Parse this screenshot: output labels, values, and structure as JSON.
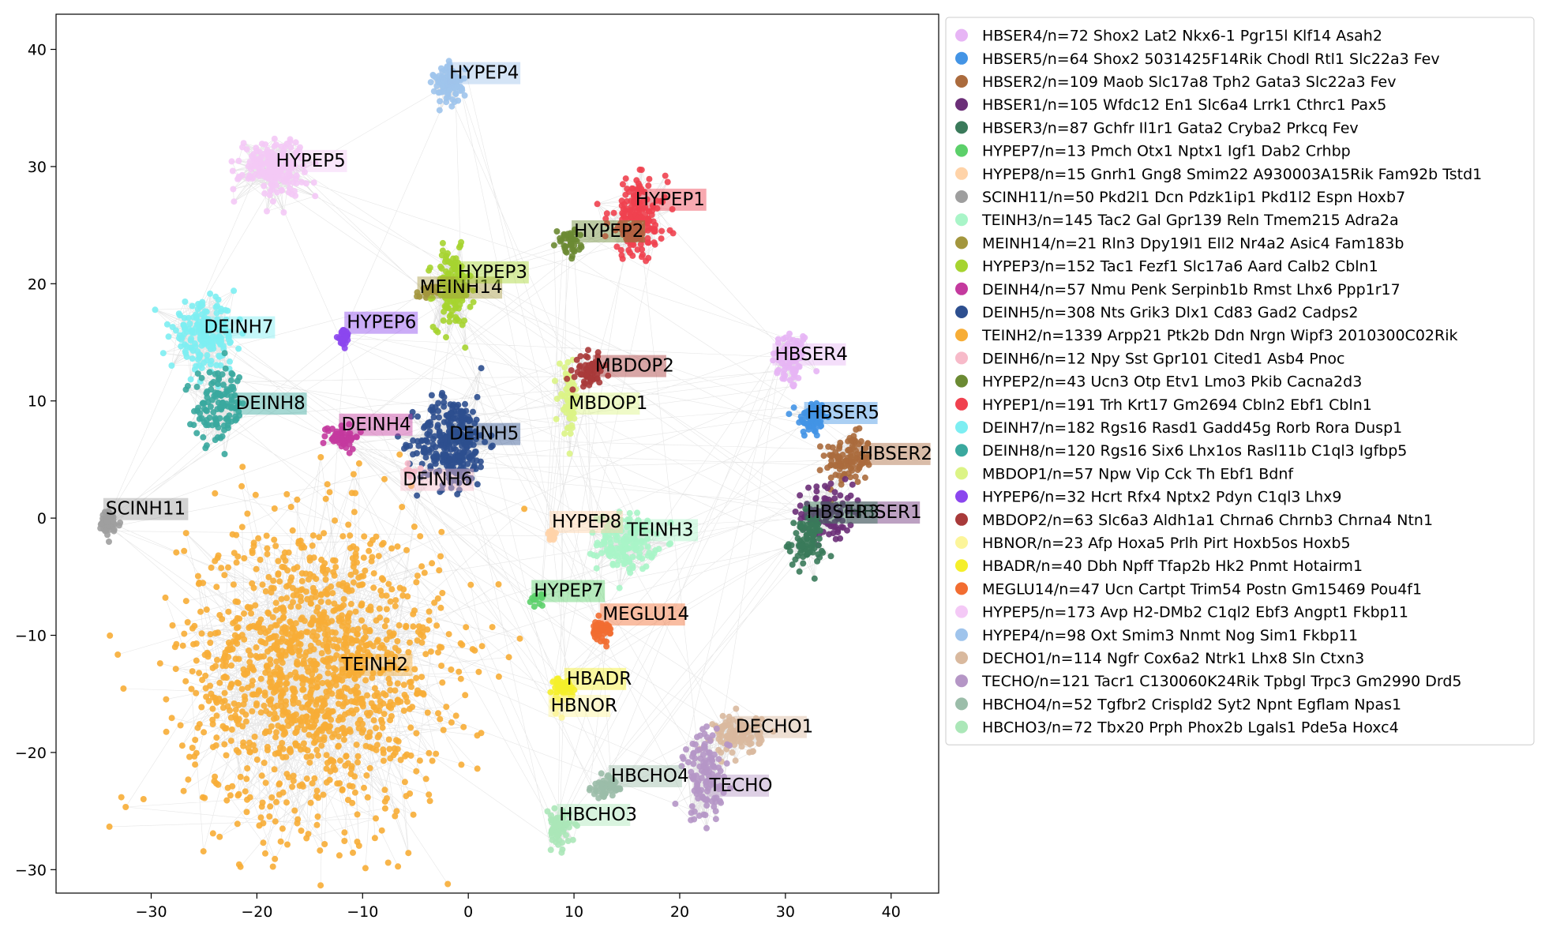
{
  "chart_data": {
    "type": "scatter",
    "xlabel": "",
    "ylabel": "",
    "xlim": [
      -39,
      44.5
    ],
    "ylim": [
      -32,
      43
    ],
    "xticks": [
      -30,
      -20,
      -10,
      0,
      10,
      20,
      30,
      40
    ],
    "yticks": [
      -30,
      -20,
      -10,
      0,
      10,
      20,
      30,
      40
    ],
    "grid": false,
    "legend_position": "right outside",
    "series": [
      {
        "name": "HBSER4/n=72 Shox2 Lat2 Nkx6-1 Pgr15l Klf14 Asah2",
        "label": "HBSER4",
        "color": "#e7b5f5",
        "n": 72,
        "center": [
          30.5,
          13.5
        ],
        "spread": [
          1.6,
          2.4
        ],
        "label_pos": [
          29.0,
          13.5
        ]
      },
      {
        "name": "HBSER5/n=64 Shox2 5031425F14Rik Chodl Rtl1 Slc22a3 Fev",
        "label": "HBSER5",
        "color": "#4394e5",
        "n": 64,
        "center": [
          32.5,
          8.5
        ],
        "spread": [
          1.2,
          1.5
        ],
        "label_pos": [
          32.0,
          8.5
        ]
      },
      {
        "name": "HBSER2/n=109 Maob Slc17a8 Tph2 Gata3 Slc22a3 Fev",
        "label": "HBSER2",
        "color": "#ab6b3d",
        "n": 109,
        "center": [
          36.0,
          5.0
        ],
        "spread": [
          2.0,
          2.0
        ],
        "label_pos": [
          37.0,
          5.0
        ]
      },
      {
        "name": "HBSER1/n=105 Wfdc12 En1 Slc6a4 Lrrk1 Cthrc1 Pax5",
        "label": "HBSER1",
        "color": "#6b2f78",
        "n": 105,
        "center": [
          34.0,
          0.5
        ],
        "spread": [
          2.2,
          2.2
        ],
        "label_pos": [
          36.0,
          0.0
        ]
      },
      {
        "name": "HBSER3/n=87 Gchfr Il1r1 Gata2 Cryba2 Prkcq Fev",
        "label": "HBSER3",
        "color": "#3a7a5a",
        "n": 87,
        "center": [
          32.0,
          -2.0
        ],
        "spread": [
          1.5,
          2.0
        ],
        "label_pos": [
          32.0,
          0.0
        ]
      },
      {
        "name": "HYPEP7/n=13 Pmch Otx1 Nptx1 Igf1 Dab2 Crhbp",
        "label": "HYPEP7",
        "color": "#5cd06a",
        "n": 13,
        "center": [
          6.5,
          -7.0
        ],
        "spread": [
          0.5,
          0.4
        ],
        "label_pos": [
          6.2,
          -6.7
        ]
      },
      {
        "name": "HYPEP8/n=15 Gnrh1 Gng8 Smim22 A930003A15Rik Fam92b Tstd1",
        "label": "HYPEP8",
        "color": "#ffd3a8",
        "n": 15,
        "center": [
          8.0,
          -1.5
        ],
        "spread": [
          0.5,
          0.4
        ],
        "label_pos": [
          7.9,
          -0.8
        ]
      },
      {
        "name": "SCINH11/n=50 Pkd2l1 Dcn Pdzk1ip1 Pkd1l2 Espn Hoxb7",
        "label": "SCINH11",
        "color": "#9e9e9e",
        "n": 50,
        "center": [
          -34.0,
          -0.5
        ],
        "spread": [
          1.0,
          1.0
        ],
        "label_pos": [
          -34.3,
          0.3
        ]
      },
      {
        "name": "TEINH3/n=145 Tac2 Gal Gpr139 Reln Tmem215 Adra2a",
        "label": "TEINH3",
        "color": "#a9f5c8",
        "n": 145,
        "center": [
          15.0,
          -2.0
        ],
        "spread": [
          2.5,
          2.2
        ],
        "label_pos": [
          15.0,
          -1.5
        ]
      },
      {
        "name": "MEINH14/n=21 Rln3 Dpy19l1 Ell2 Nr4a2 Asic4 Fam183b",
        "label": "MEINH14",
        "color": "#a3963d",
        "n": 21,
        "center": [
          -4.0,
          19.2
        ],
        "spread": [
          0.8,
          0.6
        ],
        "label_pos": [
          -4.6,
          19.2
        ]
      },
      {
        "name": "HYPEP3/n=152 Tac1 Fezf1 Slc17a6 Aard Calb2 Cbln1",
        "label": "HYPEP3",
        "color": "#a6d430",
        "n": 152,
        "center": [
          -1.5,
          19.5
        ],
        "spread": [
          1.6,
          3.0
        ],
        "label_pos": [
          -1.0,
          20.5
        ]
      },
      {
        "name": "DEINH4/n=57 Nmu Penk Serpinb1b Rmst Lhx6 Ppp1r17",
        "label": "DEINH4",
        "color": "#c43a9e",
        "n": 57,
        "center": [
          -12.0,
          7.0
        ],
        "spread": [
          1.5,
          1.0
        ],
        "label_pos": [
          -12.0,
          7.5
        ]
      },
      {
        "name": "DEINH5/n=308 Nts Grik3 Dlx1 Cd83 Gad2 Cadps2",
        "label": "DEINH5",
        "color": "#2d4f8f",
        "n": 308,
        "center": [
          -1.5,
          6.5
        ],
        "spread": [
          3.0,
          3.5
        ],
        "label_pos": [
          -1.8,
          6.7
        ]
      },
      {
        "name": "TEINH2/n=1339 Arpp21 Ptk2b Ddn Nrgn Wipf3 2010300C02Rik",
        "label": "TEINH2",
        "color": "#f7ad36",
        "n": 1339,
        "center": [
          -14.5,
          -13.0
        ],
        "spread": [
          11.0,
          11.5
        ],
        "label_pos": [
          -12.0,
          -13.0
        ]
      },
      {
        "name": "DEINH6/n=12 Npy Sst Gpr101 Cited1 Asb4 Pnoc",
        "label": "DEINH6",
        "color": "#f7bac9",
        "n": 12,
        "center": [
          -5.5,
          4.0
        ],
        "spread": [
          0.8,
          0.6
        ],
        "label_pos": [
          -6.2,
          2.8
        ]
      },
      {
        "name": "HYPEP2/n=43 Ucn3 Otp Etv1 Lmo3 Pkib Cacna2d3",
        "label": "HYPEP2",
        "color": "#6b8a33",
        "n": 43,
        "center": [
          9.5,
          23.5
        ],
        "spread": [
          1.0,
          1.0
        ],
        "label_pos": [
          10.0,
          24.0
        ]
      },
      {
        "name": "HYPEP1/n=191 Trh Krt17 Gm2694 Cbln2 Ebf1 Cbln1",
        "label": "HYPEP1",
        "color": "#f0414f",
        "n": 191,
        "center": [
          16.0,
          25.5
        ],
        "spread": [
          2.5,
          3.0
        ],
        "label_pos": [
          15.8,
          26.7
        ]
      },
      {
        "name": "DEINH7/n=182 Rgs16 Rasd1 Gadd45g Rorb Rora Dusp1",
        "label": "DEINH7",
        "color": "#7deef2",
        "n": 182,
        "center": [
          -25.0,
          15.5
        ],
        "spread": [
          2.8,
          2.5
        ],
        "label_pos": [
          -25.0,
          15.8
        ]
      },
      {
        "name": "DEINH8/n=120 Rgs16 Six6 Lhx1os Rasl11b C1ql3 Igfbp5",
        "label": "DEINH8",
        "color": "#3aa89e",
        "n": 120,
        "center": [
          -23.5,
          9.5
        ],
        "spread": [
          2.2,
          2.8
        ],
        "label_pos": [
          -22.0,
          9.3
        ]
      },
      {
        "name": "MBDOP1/n=57 Npw Vip Cck Th Ebf1 Bdnf",
        "label": "MBDOP1",
        "color": "#dcf486",
        "n": 57,
        "center": [
          9.5,
          10.0
        ],
        "spread": [
          0.8,
          2.5
        ],
        "label_pos": [
          9.5,
          9.3
        ]
      },
      {
        "name": "HYPEP6/n=32 Hcrt Rfx4 Nptx2 Pdyn C1ql3 Lhx9",
        "label": "HYPEP6",
        "color": "#8b46ee",
        "n": 32,
        "center": [
          -11.8,
          15.5
        ],
        "spread": [
          0.5,
          0.7
        ],
        "label_pos": [
          -11.5,
          16.2
        ]
      },
      {
        "name": "MBDOP2/n=63 Slc6a3 Aldh1a1 Chrna6 Chrnb3 Chrna4 Ntn1",
        "label": "MBDOP2",
        "color": "#a83a3a",
        "n": 63,
        "center": [
          11.5,
          12.5
        ],
        "spread": [
          1.2,
          1.2
        ],
        "label_pos": [
          12.0,
          12.5
        ]
      },
      {
        "name": "HBNOR/n=23 Afp Hoxa5 Prlh Pirt Hoxb5os Hoxb5",
        "label": "HBNOR",
        "color": "#fcf59a",
        "n": 23,
        "center": [
          8.5,
          -15.5
        ],
        "spread": [
          0.8,
          1.0
        ],
        "label_pos": [
          7.8,
          -16.5
        ]
      },
      {
        "name": "HBADR/n=40 Dbh Npff Tfap2b Hk2 Pnmt Hotairm1",
        "label": "HBADR",
        "color": "#f5ef2a",
        "n": 40,
        "center": [
          9.0,
          -14.5
        ],
        "spread": [
          0.8,
          0.8
        ],
        "label_pos": [
          9.3,
          -14.2
        ]
      },
      {
        "name": "MEGLU14/n=47 Ucn Cartpt Trim54 Postn Gm15469 Pou4f1",
        "label": "MEGLU14",
        "color": "#f26d31",
        "n": 47,
        "center": [
          12.5,
          -9.5
        ],
        "spread": [
          1.0,
          0.8
        ],
        "label_pos": [
          12.7,
          -8.7
        ]
      },
      {
        "name": "HYPEP5/n=173 Avp H2-DMb2 C1ql2 Ebf3 Angpt1 Fkbp11",
        "label": "HYPEP5",
        "color": "#f4c9f6",
        "n": 173,
        "center": [
          -18.5,
          30.0
        ],
        "spread": [
          2.8,
          2.2
        ],
        "label_pos": [
          -18.2,
          30.0
        ]
      },
      {
        "name": "HYPEP4/n=98 Oxt Smim3 Nnmt Nog Sim1 Fkbp11",
        "label": "HYPEP4",
        "color": "#9fc4ec",
        "n": 98,
        "center": [
          -1.8,
          37.0
        ],
        "spread": [
          1.3,
          1.5
        ],
        "label_pos": [
          -1.8,
          37.5
        ]
      },
      {
        "name": "DECHO1/n=114 Ngfr Cox6a2 Ntrk1 Lhx8 Sln Ctxn3",
        "label": "DECHO1",
        "color": "#d9b99e",
        "n": 114,
        "center": [
          25.5,
          -18.5
        ],
        "spread": [
          2.0,
          1.5
        ],
        "label_pos": [
          25.3,
          -18.3
        ]
      },
      {
        "name": "TECHO/n=121 Tacr1 C130060K24Rik Tpbgl Trpc3 Gm2990 Drd5",
        "label": "TECHO",
        "color": "#b596c6",
        "n": 121,
        "center": [
          22.5,
          -22.0
        ],
        "spread": [
          2.0,
          3.5
        ],
        "label_pos": [
          22.8,
          -23.3
        ]
      },
      {
        "name": "HBCHO4/n=52 Tgfbr2 Crispld2 Syt2 Npnt Egflam Npas1",
        "label": "HBCHO4",
        "color": "#9bbda9",
        "n": 52,
        "center": [
          13.0,
          -23.0
        ],
        "spread": [
          1.2,
          0.8
        ],
        "label_pos": [
          13.5,
          -22.5
        ]
      },
      {
        "name": "HBCHO3/n=72 Tbx20 Prph Phox2b Lgals1 Pde5a Hoxc4",
        "label": "HBCHO3",
        "color": "#abe7b8",
        "n": 72,
        "center": [
          8.5,
          -26.5
        ],
        "spread": [
          1.0,
          1.3
        ],
        "label_pos": [
          8.6,
          -25.8
        ]
      }
    ]
  }
}
